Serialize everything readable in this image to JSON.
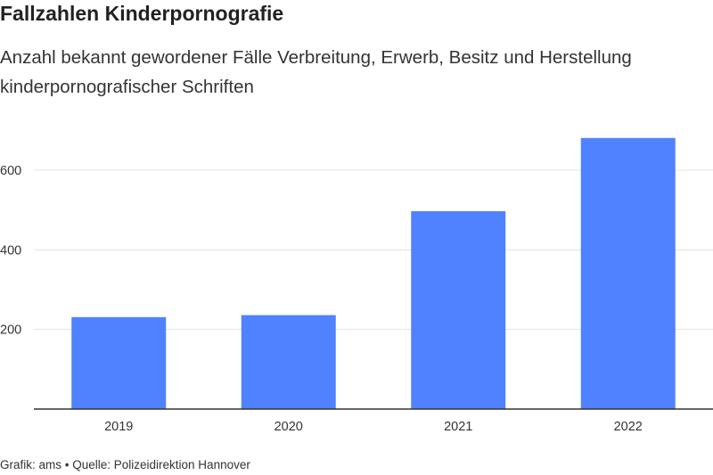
{
  "header": {
    "title": "Fallzahlen Kinderpornografie",
    "subtitle": "Anzahl bekannt gewordener Fälle Verbreitung, Erwerb, Besitz und Herstellung kinderpornografischer Schriften"
  },
  "footer": {
    "text": "Grafik: ams • Quelle: Polizeidirektion Hannover"
  },
  "colors": {
    "bar": "#5081ff",
    "grid": "#e3e3e3",
    "axis": "#333333"
  },
  "chart_data": {
    "type": "bar",
    "categories": [
      "2019",
      "2020",
      "2021",
      "2022"
    ],
    "values": [
      231,
      236,
      497,
      681
    ],
    "ylim": [
      0,
      700
    ],
    "yticks": [
      200,
      400,
      600
    ],
    "grid": true,
    "legend": "none"
  }
}
